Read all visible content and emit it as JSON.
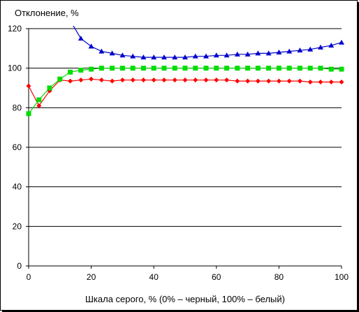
{
  "chart_data": {
    "type": "line",
    "title": "",
    "ylabel": "Отклонение,  %",
    "xlabel": "Шкала серого, % (0% – черный, 100% – белый)",
    "xlim": [
      0,
      100
    ],
    "ylim": [
      0,
      120
    ],
    "xticks": [
      0,
      20,
      40,
      60,
      80,
      100
    ],
    "yticks": [
      0,
      20,
      40,
      60,
      80,
      100,
      120
    ],
    "grid": "horizontal",
    "legend": "none",
    "series": [
      {
        "color": "#0000cc",
        "marker": "triangle",
        "x": [
          13.3,
          16.7,
          20,
          23.3,
          26.7,
          30,
          33.3,
          36.7,
          40,
          43.3,
          46.7,
          50,
          53.3,
          56.7,
          60,
          63.3,
          66.7,
          70,
          73.3,
          76.7,
          80,
          83.3,
          86.7,
          90,
          93.3,
          96.7,
          100
        ],
        "y": [
          124,
          115,
          111,
          108.5,
          107.5,
          106.5,
          106,
          105.5,
          105.5,
          105.5,
          105.5,
          105.5,
          106,
          106,
          106.5,
          106.5,
          107,
          107,
          107.5,
          107.5,
          108,
          108.5,
          109,
          109.5,
          110.5,
          111.5,
          113
        ]
      },
      {
        "color": "#ff0000",
        "marker": "diamond",
        "x": [
          0,
          3.3,
          6.7,
          10,
          13.3,
          16.7,
          20,
          23.3,
          26.7,
          30,
          33.3,
          36.7,
          40,
          43.3,
          46.7,
          50,
          53.3,
          56.7,
          60,
          63.3,
          66.7,
          70,
          73.3,
          76.7,
          80,
          83.3,
          86.7,
          90,
          93.3,
          96.7,
          100
        ],
        "y": [
          91,
          81,
          88.5,
          94,
          93.5,
          94,
          94.5,
          94,
          93.5,
          94,
          94,
          94,
          94,
          94,
          94,
          94,
          94,
          94,
          94,
          94,
          93.5,
          93.5,
          93.5,
          93.5,
          93.5,
          93.5,
          93.5,
          93,
          93,
          93,
          93
        ]
      },
      {
        "color": "#00dd00",
        "marker": "square",
        "x": [
          0,
          3.3,
          6.7,
          10,
          13.3,
          16.7,
          20,
          23.3,
          26.7,
          30,
          33.3,
          36.7,
          40,
          43.3,
          46.7,
          50,
          53.3,
          56.7,
          60,
          63.3,
          66.7,
          70,
          73.3,
          76.7,
          80,
          83.3,
          86.7,
          90,
          93.3,
          96.7,
          100
        ],
        "y": [
          77,
          84,
          90,
          94.5,
          98,
          99,
          99.5,
          100,
          100,
          100,
          100,
          100,
          100,
          100,
          100,
          100,
          100,
          100,
          100,
          100,
          100,
          100,
          100,
          100,
          100,
          100,
          100,
          100,
          100,
          99.5,
          99.5
        ]
      }
    ]
  }
}
